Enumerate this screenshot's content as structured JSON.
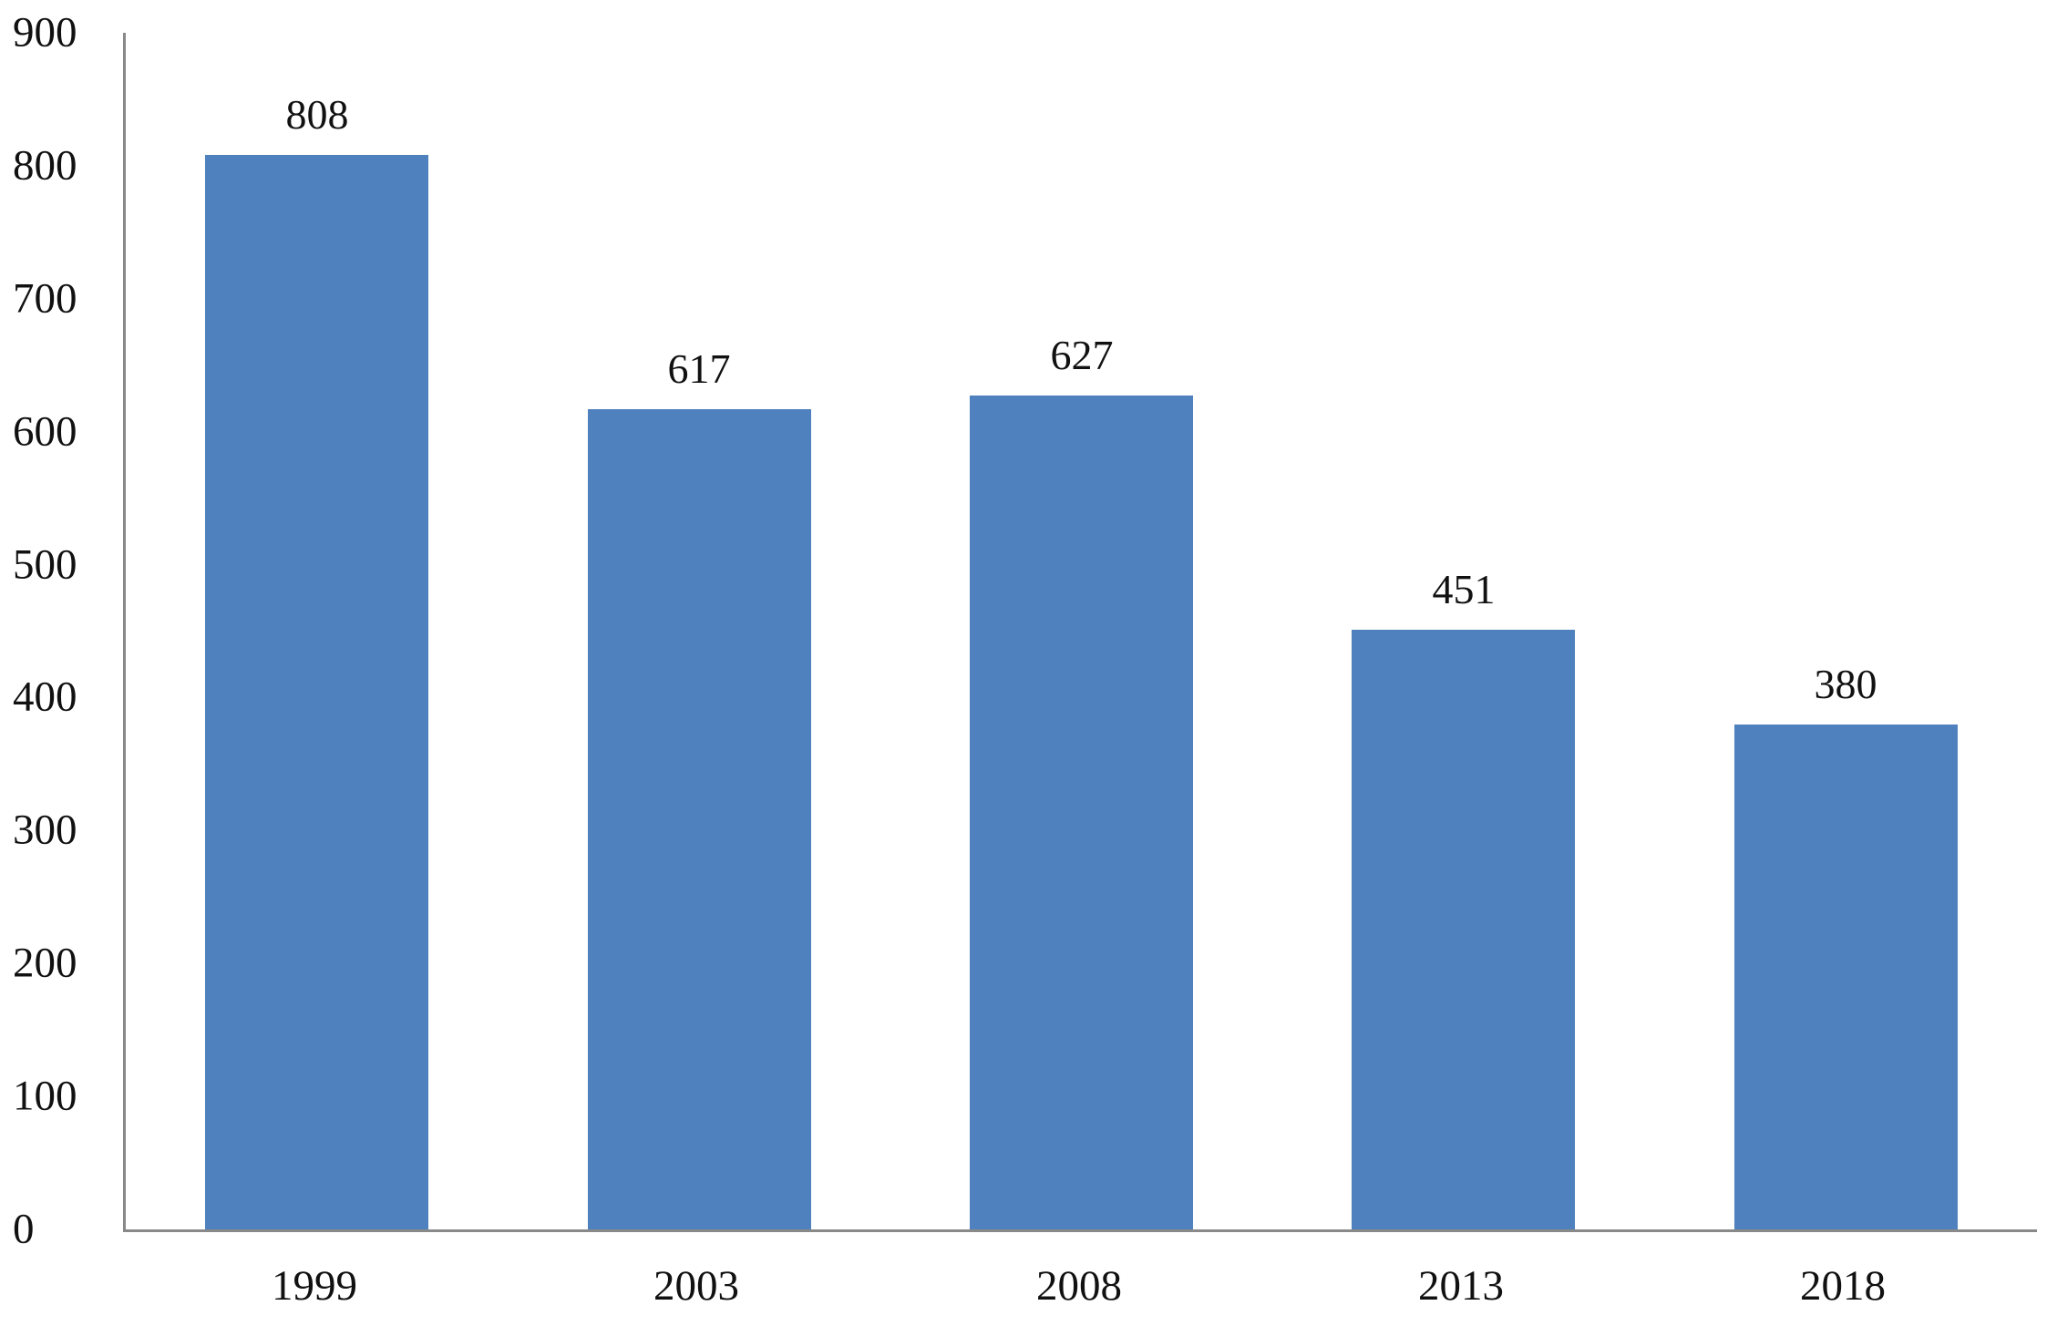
{
  "chart_data": {
    "type": "bar",
    "categories": [
      "1999",
      "2003",
      "2008",
      "2013",
      "2018"
    ],
    "values": [
      808,
      617,
      627,
      451,
      380
    ],
    "data_labels": [
      "808",
      "617",
      "627",
      "451",
      "380"
    ],
    "title": "",
    "xlabel": "",
    "ylabel": "",
    "ylim": [
      0,
      900
    ],
    "yticks": [
      0,
      100,
      200,
      300,
      400,
      500,
      600,
      700,
      800,
      900
    ],
    "grid": "off",
    "legend": "none",
    "bar_color": "#4e81bd",
    "axis_color": "#898989",
    "label_color": "#111111"
  }
}
